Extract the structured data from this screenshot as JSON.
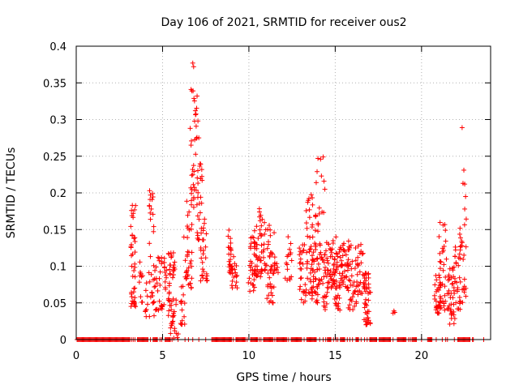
{
  "chart_data": {
    "type": "scatter",
    "title": "Day 106 of 2021, SRMTID for receiver ous2",
    "xlabel": "GPS time / hours",
    "ylabel": "SRMTID / TECUs",
    "xlim": [
      0,
      24
    ],
    "ylim": [
      0,
      0.4
    ],
    "grid": true,
    "marker": "+",
    "color": "#ff0000",
    "xticks": [
      0,
      5,
      10,
      15,
      20
    ],
    "xtick_labels": [
      "0",
      "5",
      "10",
      "15",
      "20"
    ],
    "yticks": [
      0,
      0.05,
      0.1,
      0.15,
      0.2,
      0.25,
      0.3,
      0.35,
      0.4
    ],
    "ytick_labels": [
      "0",
      "0.05",
      "0.1",
      "0.15",
      "0.2",
      "0.25",
      "0.3",
      "0.35",
      "0.4"
    ],
    "series": [
      {
        "name": "SRMTID",
        "zero_ranges": [
          [
            0.05,
            3.1
          ],
          [
            3.55,
            4.15
          ],
          [
            4.45,
            4.7
          ],
          [
            5.15,
            5.45
          ],
          [
            7.85,
            8.95
          ],
          [
            9.25,
            9.8
          ],
          [
            10.1,
            10.5
          ],
          [
            10.85,
            11.4
          ],
          [
            11.6,
            12.2
          ],
          [
            12.45,
            13.05
          ],
          [
            13.35,
            13.9
          ],
          [
            14.55,
            14.75
          ],
          [
            15.3,
            15.55
          ],
          [
            16.2,
            16.35
          ],
          [
            17.0,
            17.35
          ],
          [
            17.55,
            18.2
          ],
          [
            18.6,
            19.1
          ],
          [
            19.45,
            19.7
          ],
          [
            20.35,
            20.6
          ],
          [
            22.1,
            22.8
          ]
        ],
        "zero_points": [
          3.2,
          3.3,
          3.4,
          4.3,
          4.85,
          4.95,
          5.55,
          5.9,
          6.3,
          6.5,
          6.75,
          7.1,
          7.5,
          8.1,
          8.6,
          9.0,
          9.1,
          9.9,
          10.6,
          10.7,
          11.5,
          12.3,
          13.2,
          13.8,
          14.1,
          14.3,
          14.45,
          14.9,
          15.05,
          15.15,
          15.7,
          15.85,
          16.0,
          16.5,
          16.7,
          16.85,
          17.4,
          18.35,
          19.25,
          19.35,
          20.0,
          20.85,
          21.2,
          21.4,
          21.5,
          21.9,
          22.95,
          23.0,
          23.6
        ],
        "clusters": [
          [
            3.15,
            3.45,
            0.045,
            0.185,
            40
          ],
          [
            3.65,
            3.85,
            0.05,
            0.11,
            10
          ],
          [
            3.95,
            4.15,
            0.03,
            0.08,
            8
          ],
          [
            4.2,
            4.55,
            0.03,
            0.205,
            24
          ],
          [
            4.45,
            5.0,
            0.04,
            0.115,
            30
          ],
          [
            5.05,
            5.25,
            0.04,
            0.12,
            12
          ],
          [
            5.3,
            5.75,
            0.03,
            0.12,
            36
          ],
          [
            5.45,
            5.95,
            0.0,
            0.06,
            16
          ],
          [
            6.0,
            6.3,
            0.02,
            0.08,
            14
          ],
          [
            6.2,
            6.45,
            0.08,
            0.14,
            10
          ],
          [
            6.4,
            6.7,
            0.07,
            0.19,
            24
          ],
          [
            6.6,
            7.0,
            0.18,
            0.34,
            32
          ],
          [
            7.0,
            7.3,
            0.12,
            0.25,
            26
          ],
          [
            7.2,
            7.6,
            0.08,
            0.17,
            26
          ],
          [
            8.75,
            9.0,
            0.09,
            0.15,
            22
          ],
          [
            9.0,
            9.35,
            0.07,
            0.115,
            18
          ],
          [
            9.95,
            10.4,
            0.065,
            0.14,
            26
          ],
          [
            10.3,
            10.75,
            0.08,
            0.16,
            30
          ],
          [
            10.6,
            11.2,
            0.09,
            0.18,
            36
          ],
          [
            10.9,
            11.45,
            0.05,
            0.1,
            20
          ],
          [
            11.2,
            11.7,
            0.09,
            0.15,
            22
          ],
          [
            12.1,
            12.5,
            0.08,
            0.15,
            16
          ],
          [
            12.9,
            13.3,
            0.05,
            0.13,
            26
          ],
          [
            13.3,
            13.7,
            0.06,
            0.2,
            40
          ],
          [
            13.6,
            14.0,
            0.05,
            0.12,
            26
          ],
          [
            13.8,
            14.35,
            0.07,
            0.18,
            34
          ],
          [
            14.25,
            14.55,
            0.04,
            0.17,
            20
          ],
          [
            14.5,
            15.1,
            0.07,
            0.14,
            46
          ],
          [
            14.9,
            15.3,
            0.04,
            0.12,
            30
          ],
          [
            15.25,
            15.8,
            0.07,
            0.14,
            40
          ],
          [
            15.7,
            16.3,
            0.04,
            0.13,
            36
          ],
          [
            16.25,
            16.8,
            0.06,
            0.13,
            28
          ],
          [
            16.65,
            17.05,
            0.02,
            0.09,
            40
          ],
          [
            20.75,
            21.15,
            0.035,
            0.09,
            30
          ],
          [
            21.0,
            21.45,
            0.04,
            0.16,
            34
          ],
          [
            21.5,
            21.95,
            0.02,
            0.1,
            40
          ],
          [
            21.9,
            22.25,
            0.04,
            0.13,
            24
          ],
          [
            22.2,
            22.6,
            0.05,
            0.17,
            24
          ]
        ],
        "points": [
          [
            6.75,
            0.377
          ],
          [
            6.8,
            0.372
          ],
          [
            6.65,
            0.341
          ],
          [
            6.7,
            0.339
          ],
          [
            7.0,
            0.332
          ],
          [
            6.9,
            0.312
          ],
          [
            7.05,
            0.298
          ],
          [
            7.1,
            0.275
          ],
          [
            6.6,
            0.288
          ],
          [
            14.0,
            0.247
          ],
          [
            14.15,
            0.246
          ],
          [
            14.3,
            0.249
          ],
          [
            13.95,
            0.229
          ],
          [
            14.2,
            0.223
          ],
          [
            14.35,
            0.216
          ],
          [
            13.9,
            0.214
          ],
          [
            14.4,
            0.205
          ],
          [
            22.35,
            0.289
          ],
          [
            22.45,
            0.231
          ],
          [
            22.4,
            0.213
          ],
          [
            22.5,
            0.212
          ],
          [
            22.55,
            0.195
          ],
          [
            22.5,
            0.178
          ],
          [
            4.25,
            0.203
          ],
          [
            4.3,
            0.197
          ],
          [
            4.35,
            0.178
          ],
          [
            4.3,
            0.164
          ],
          [
            3.25,
            0.183
          ],
          [
            3.2,
            0.176
          ],
          [
            3.3,
            0.172
          ],
          [
            18.4,
            0.039
          ],
          [
            18.45,
            0.037
          ],
          [
            18.35,
            0.036
          ],
          [
            5.65,
            0.002
          ],
          [
            5.7,
            0.012
          ],
          [
            5.6,
            0.025
          ]
        ]
      }
    ]
  }
}
